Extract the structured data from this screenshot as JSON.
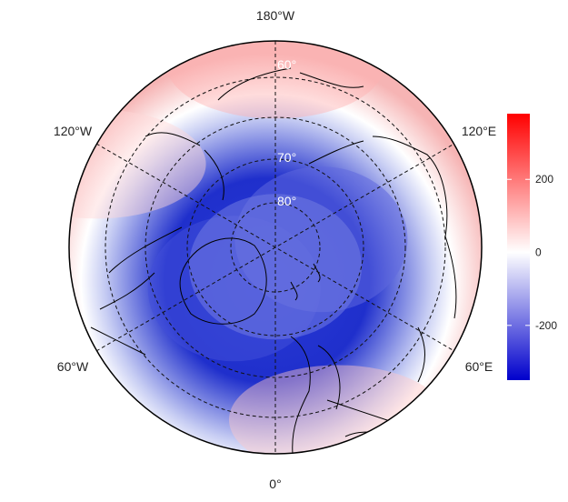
{
  "map": {
    "projection": "north polar stereographic",
    "longitude_labels": [
      {
        "text": "180°W",
        "lon": 180
      },
      {
        "text": "120°E",
        "lon": 120
      },
      {
        "text": "60°E",
        "lon": 60
      },
      {
        "text": "0°",
        "lon": 0
      },
      {
        "text": "60°W",
        "lon": -60
      },
      {
        "text": "120°W",
        "lon": -120
      }
    ],
    "latitude_labels": [
      {
        "text": "60°",
        "lat": 60
      },
      {
        "text": "70°",
        "lat": 70
      },
      {
        "text": "80°",
        "lat": 80
      }
    ],
    "graticule": {
      "latitudes": [
        50,
        60,
        70,
        80
      ],
      "meridians_every_deg": 60,
      "style": "dashed"
    },
    "field_anomaly_centers": [
      {
        "lat": 75,
        "lon": -45,
        "value": -270
      },
      {
        "lat": 78,
        "lon": 100,
        "value": -230
      },
      {
        "lat": 85,
        "lon": 0,
        "value": -200
      },
      {
        "lat": 45,
        "lon": 180,
        "value": 150
      },
      {
        "lat": 45,
        "lon": 20,
        "value": 110
      },
      {
        "lat": 42,
        "lon": -115,
        "value": 80
      }
    ]
  },
  "colorbar": {
    "min": -350,
    "max": 380,
    "ticks": [
      {
        "value": 200,
        "label": "200"
      },
      {
        "value": 0,
        "label": "0"
      },
      {
        "value": -200,
        "label": "-200"
      }
    ],
    "colors": {
      "low": "#0000cc",
      "mid": "#ffffff",
      "high": "#ff0000"
    }
  }
}
